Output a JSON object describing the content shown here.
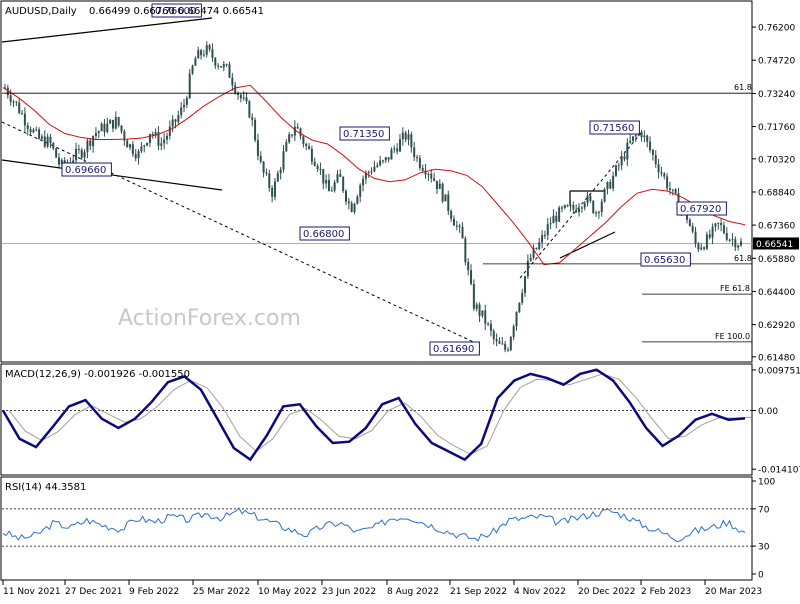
{
  "header": {
    "symbol": "AUDUSD,Daily",
    "ohlc": "0.66499 0.66760 0.66474 0.66541"
  },
  "watermark": "ActionForex.com",
  "colors": {
    "candle": "#2f4f4f",
    "ma": "#d01010",
    "macd": "#0a0a7a",
    "signal": "#a0a0a0",
    "rsi": "#2a6fd0",
    "frame": "#000000",
    "hline": "#808080",
    "label_border": "#1a1a6e"
  },
  "chart_data": [
    {
      "type": "candlestick",
      "title": "AUDUSD,Daily",
      "ylim": [
        0.6125,
        0.7732
      ],
      "yticks": [
        "0.76200",
        "0.74720",
        "0.73240",
        "0.71760",
        "0.70320",
        "0.68840",
        "0.67360",
        "0.65880",
        "0.64400",
        "0.62920",
        "0.61480"
      ],
      "ytick_values": [
        0.762,
        0.7472,
        0.7324,
        0.7176,
        0.7032,
        0.6884,
        0.6736,
        0.6588,
        0.644,
        0.6292,
        0.6148
      ],
      "current_price": "0.66541",
      "current_value": 0.66541,
      "xticks": [
        "11 Nov 2021",
        "27 Dec 2021",
        "9 Feb 2022",
        "25 Mar 2022",
        "10 May 2022",
        "23 Jun 2022",
        "8 Aug 2022",
        "21 Sep 2022",
        "4 Nov 2022",
        "20 Dec 2022",
        "2 Feb 2023",
        "20 Mar 2023"
      ],
      "close_path": [
        0.735,
        0.7275,
        0.719,
        0.712,
        0.7105,
        0.6995,
        0.7035,
        0.707,
        0.7145,
        0.7175,
        0.72,
        0.71,
        0.705,
        0.7155,
        0.71,
        0.7175,
        0.7265,
        0.7475,
        0.752,
        0.7465,
        0.7425,
        0.7315,
        0.7235,
        0.6985,
        0.688,
        0.7055,
        0.7185,
        0.7085,
        0.7015,
        0.688,
        0.695,
        0.6808,
        0.6938,
        0.6998,
        0.7013,
        0.7085,
        0.7138,
        0.7025,
        0.6978,
        0.6898,
        0.6788,
        0.6675,
        0.6385,
        0.6315,
        0.6205,
        0.6178,
        0.6385,
        0.6578,
        0.6658,
        0.6758,
        0.6798,
        0.6808,
        0.6858,
        0.6798,
        0.6898,
        0.6998,
        0.7098,
        0.7158,
        0.7055,
        0.6958,
        0.6858,
        0.6798,
        0.6638,
        0.6668,
        0.6738,
        0.6678,
        0.6654
      ],
      "ma_path": [
        0.735,
        0.7305,
        0.725,
        0.7185,
        0.7145,
        0.7128,
        0.7118,
        0.7118,
        0.712,
        0.7125,
        0.714,
        0.7168,
        0.7215,
        0.7268,
        0.731,
        0.7348,
        0.736,
        0.729,
        0.7215,
        0.7155,
        0.7115,
        0.7098,
        0.7048,
        0.6988,
        0.6945,
        0.693,
        0.6938,
        0.697,
        0.6985,
        0.6978,
        0.6958,
        0.6908,
        0.6828,
        0.6748,
        0.6658,
        0.656,
        0.6568,
        0.6628,
        0.6688,
        0.6748,
        0.6818,
        0.6878,
        0.6896,
        0.6888,
        0.6858,
        0.6818,
        0.6778,
        0.6752,
        0.6738
      ],
      "annotations": [
        {
          "label": "0.76600",
          "value": 0.766
        },
        {
          "label": "0.69660",
          "value": 0.6966
        },
        {
          "label": "0.71350",
          "value": 0.7135
        },
        {
          "label": "0.66800",
          "value": 0.668
        },
        {
          "label": "0.61690",
          "value": 0.6169
        },
        {
          "label": "0.71560",
          "value": 0.7156
        },
        {
          "label": "0.67920",
          "value": 0.6792
        },
        {
          "label": "0.65630",
          "value": 0.6563
        }
      ],
      "levels": [
        {
          "label": "61.8",
          "value": 0.7325
        },
        {
          "label": "61.8",
          "value": 0.6563
        },
        {
          "label": "FE 61.8",
          "value": 0.6428
        },
        {
          "label": "FE 100.0",
          "value": 0.6215
        }
      ]
    },
    {
      "type": "line",
      "title": "MACD(12,26,9) -0.001926 -0.001550",
      "ylim": [
        -0.0155,
        0.0107
      ],
      "yticks": [
        "0.009751",
        "0.00",
        "-0.014107"
      ],
      "ytick_values": [
        0.009751,
        0.0,
        -0.014107
      ],
      "macd_path": [
        0.0,
        -0.0068,
        -0.0088,
        -0.004,
        0.001,
        0.0025,
        -0.002,
        -0.0042,
        -0.002,
        0.002,
        0.0068,
        0.0082,
        0.005,
        -0.002,
        -0.009,
        -0.0118,
        -0.006,
        0.001,
        0.0015,
        -0.0038,
        -0.0078,
        -0.0075,
        -0.0042,
        0.0015,
        0.003,
        -0.0032,
        -0.0078,
        -0.0098,
        -0.0118,
        -0.008,
        0.003,
        0.0072,
        0.0088,
        0.0078,
        0.0062,
        0.0088,
        0.0098,
        0.0072,
        0.002,
        -0.0042,
        -0.0085,
        -0.006,
        -0.0022,
        -0.0008,
        -0.0022,
        -0.0019
      ],
      "signal_path": [
        0.0,
        -0.005,
        -0.0072,
        -0.005,
        -0.001,
        0.0012,
        -0.0008,
        -0.0028,
        -0.002,
        0.001,
        0.005,
        0.0072,
        0.0055,
        0.0005,
        -0.0062,
        -0.0098,
        -0.0068,
        -0.001,
        0.0005,
        -0.0025,
        -0.0062,
        -0.0068,
        -0.0048,
        0.0,
        0.0018,
        -0.0015,
        -0.006,
        -0.0085,
        -0.0105,
        -0.0085,
        0.0,
        0.0055,
        0.0075,
        0.0072,
        0.0062,
        0.0075,
        0.0088,
        0.0075,
        0.0032,
        -0.002,
        -0.0068,
        -0.0062,
        -0.0035,
        -0.0018,
        -0.0018,
        -0.0016
      ]
    },
    {
      "type": "line",
      "title": "RSI(14) 44.3581",
      "ylim": [
        0,
        100
      ],
      "yticks": [
        "100",
        "70",
        "30",
        "0"
      ],
      "ytick_values": [
        100,
        70,
        30,
        0
      ],
      "rsi_path": [
        45,
        38,
        42,
        55,
        50,
        58,
        52,
        48,
        60,
        56,
        62,
        58,
        65,
        60,
        68,
        62,
        55,
        48,
        42,
        52,
        55,
        45,
        50,
        60,
        62,
        55,
        48,
        42,
        38,
        44,
        58,
        60,
        62,
        55,
        60,
        65,
        68,
        62,
        52,
        45,
        38,
        46,
        50,
        56,
        44
      ]
    }
  ]
}
